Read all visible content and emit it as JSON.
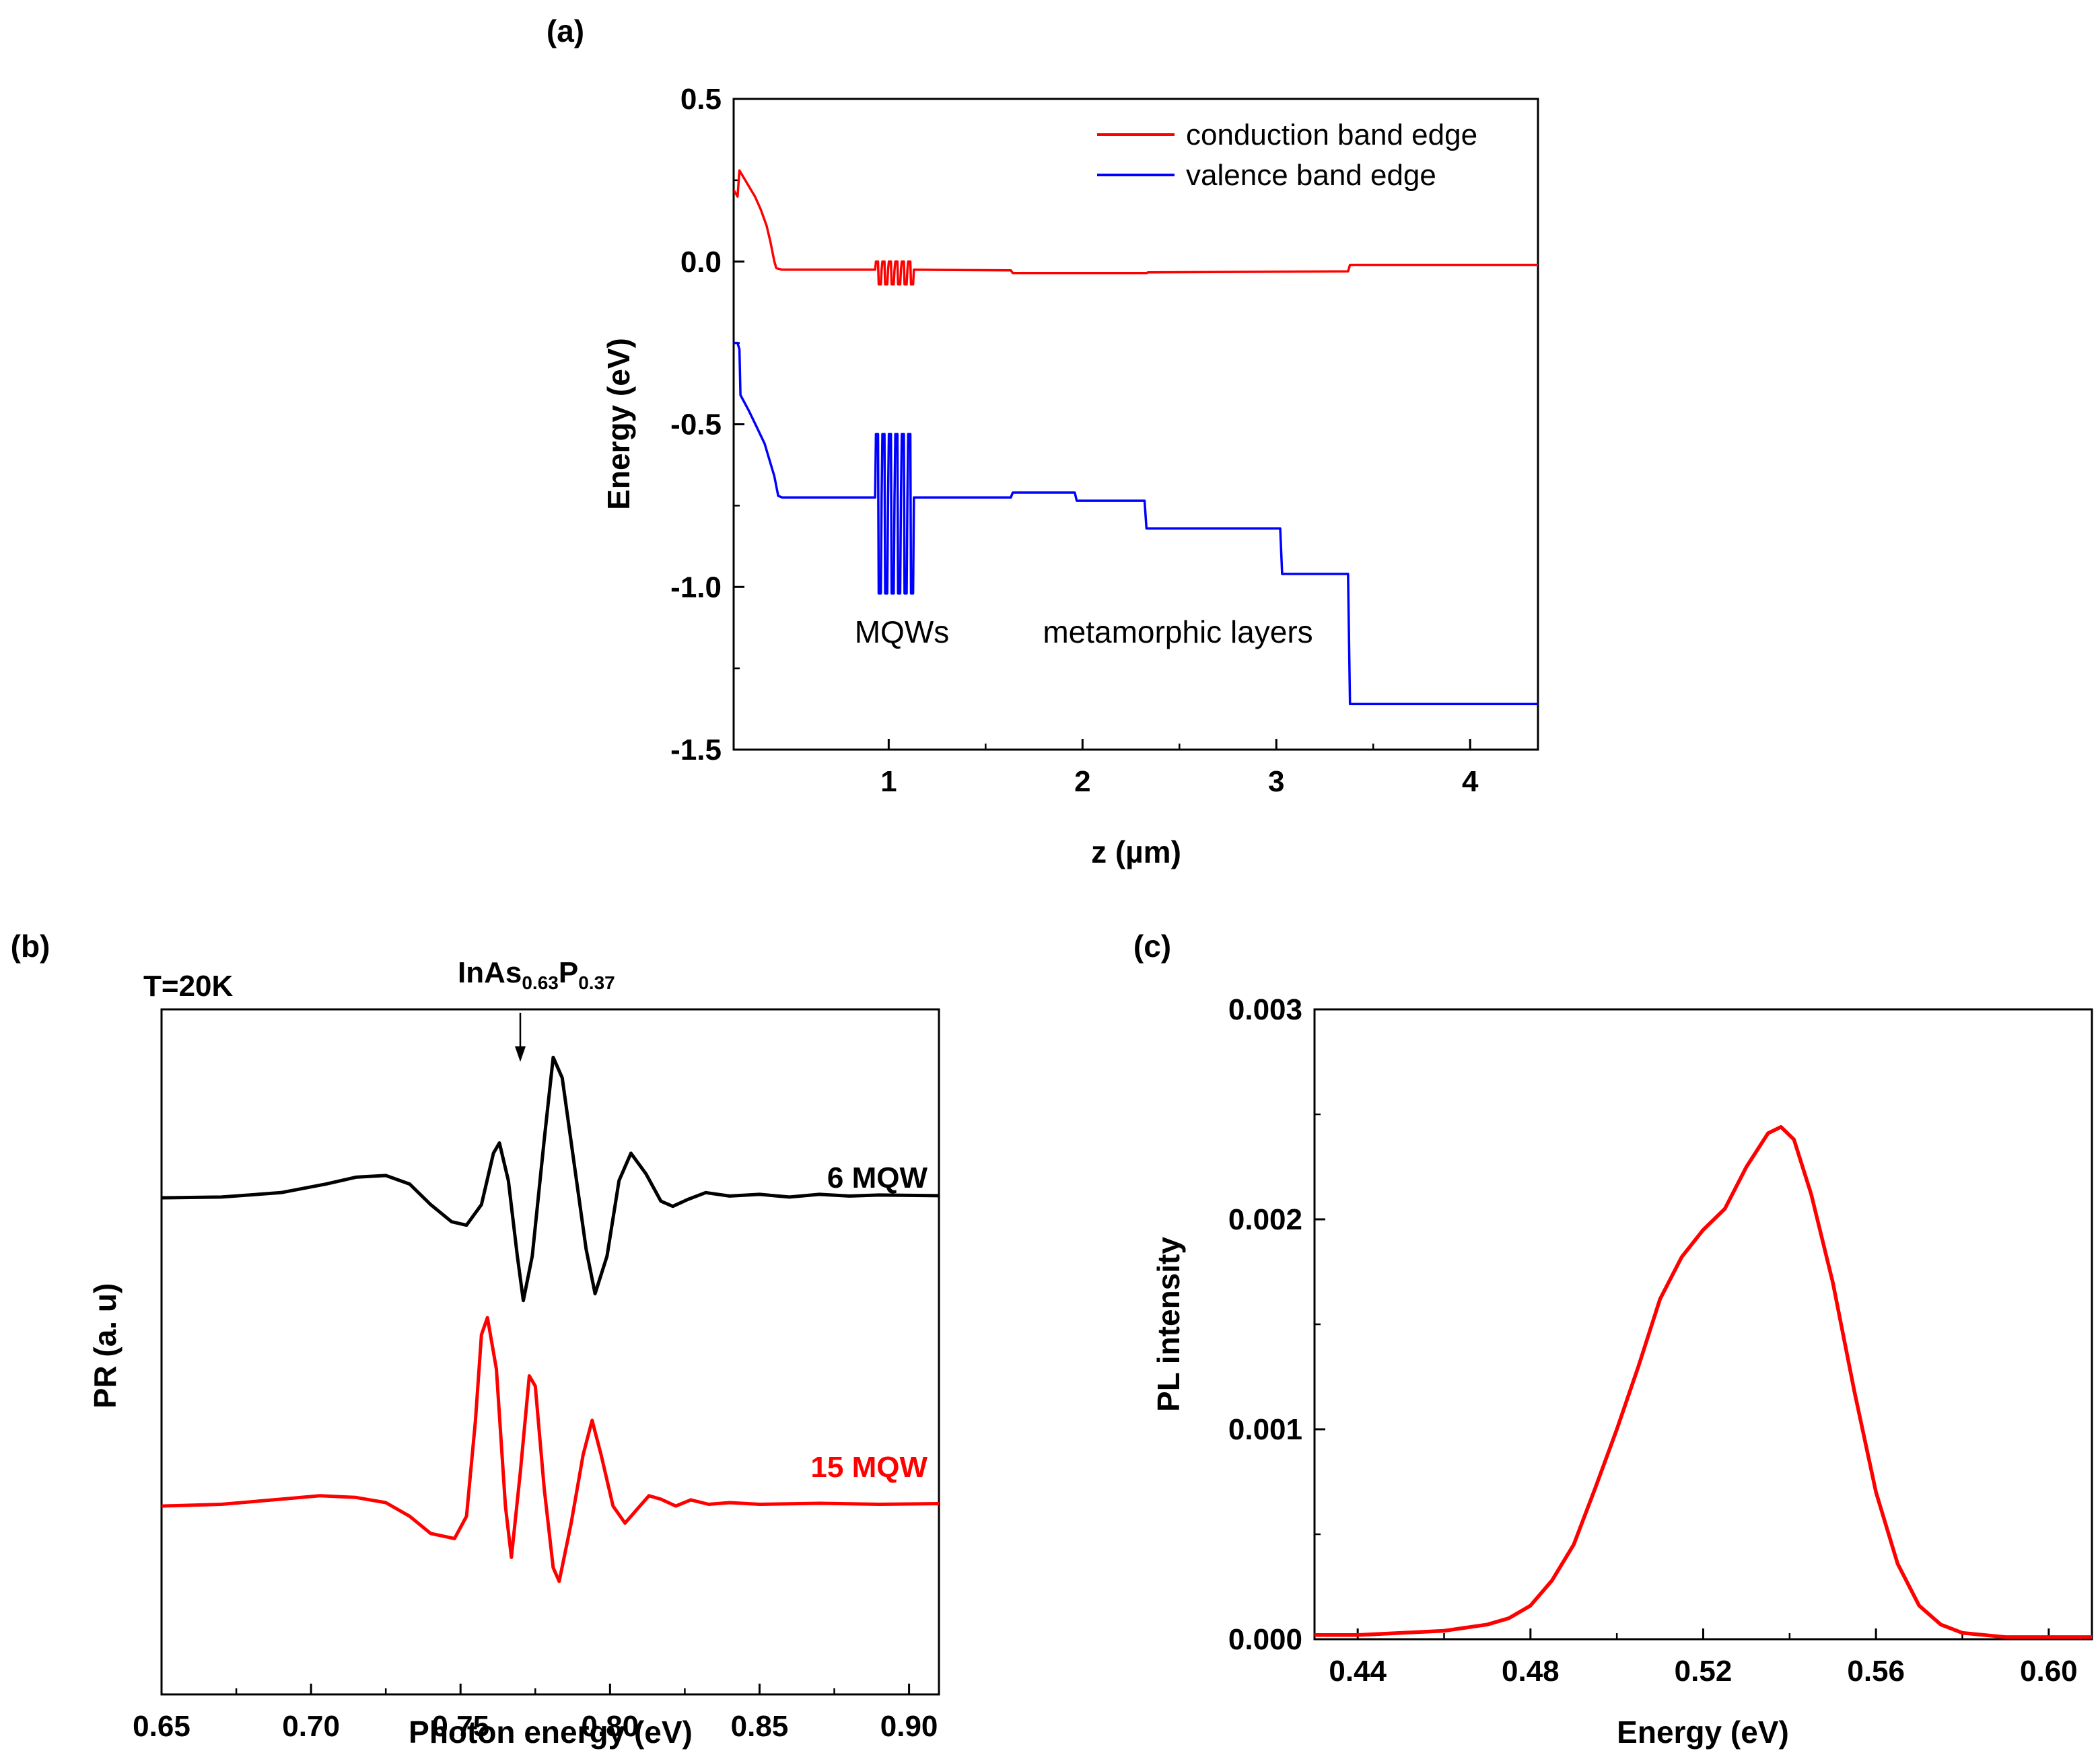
{
  "chart_data": [
    {
      "id": "a",
      "panel_label": "(a)",
      "type": "line",
      "xlabel": "z (µm)",
      "ylabel": "Energy (eV)",
      "xlim": [
        0.2,
        4.35
      ],
      "ylim": [
        -1.5,
        0.5
      ],
      "xticks": [
        1,
        2,
        3,
        4
      ],
      "xtick_labels": [
        "1",
        "2",
        "3",
        "4"
      ],
      "yticks": [
        0.5,
        0.0,
        -0.5,
        -1.0,
        -1.5
      ],
      "ytick_labels": [
        "0.5",
        "0.0",
        "-0.5",
        "-1.0",
        "-1.5"
      ],
      "legend": {
        "position": "top-right",
        "entries": [
          {
            "label": "conduction band edge",
            "color": "#ff0000"
          },
          {
            "label": "valence band edge",
            "color": "#0000ff"
          }
        ]
      },
      "annotations": [
        {
          "text": "MQWs",
          "x": 1.08,
          "y": -1.14
        },
        {
          "text": "metamorphic layers",
          "x": 2.5,
          "y": -1.14
        }
      ],
      "series": [
        {
          "name": "conduction band edge",
          "color": "#ff0000",
          "points": [
            [
              0.2,
              0.22
            ],
            [
              0.22,
              0.2
            ],
            [
              0.23,
              0.28
            ],
            [
              0.25,
              0.26
            ],
            [
              0.28,
              0.23
            ],
            [
              0.31,
              0.2
            ],
            [
              0.34,
              0.16
            ],
            [
              0.37,
              0.11
            ],
            [
              0.39,
              0.06
            ],
            [
              0.41,
              0.0
            ],
            [
              0.42,
              -0.02
            ],
            [
              0.45,
              -0.025
            ],
            [
              0.93,
              -0.025
            ],
            [
              1.63,
              -0.027
            ],
            [
              1.64,
              -0.035
            ],
            [
              2.33,
              -0.035
            ],
            [
              2.34,
              -0.033
            ],
            [
              3.37,
              -0.03
            ],
            [
              3.38,
              -0.01
            ],
            [
              4.35,
              -0.01
            ]
          ],
          "qw_region": {
            "x_start": 0.93,
            "x_end": 1.13,
            "count": 6,
            "top": 0.0,
            "bottom": -0.07
          }
        },
        {
          "name": "valence band edge",
          "color": "#0000ff",
          "points": [
            [
              0.2,
              -0.25
            ],
            [
              0.22,
              -0.25
            ],
            [
              0.23,
              -0.27
            ],
            [
              0.235,
              -0.41
            ],
            [
              0.28,
              -0.46
            ],
            [
              0.32,
              -0.51
            ],
            [
              0.36,
              -0.56
            ],
            [
              0.38,
              -0.6
            ],
            [
              0.41,
              -0.66
            ],
            [
              0.43,
              -0.72
            ],
            [
              0.45,
              -0.725
            ],
            [
              1.63,
              -0.725
            ],
            [
              1.64,
              -0.71
            ],
            [
              1.96,
              -0.71
            ],
            [
              1.97,
              -0.735
            ],
            [
              2.32,
              -0.735
            ],
            [
              2.33,
              -0.82
            ],
            [
              3.02,
              -0.82
            ],
            [
              3.03,
              -0.96
            ],
            [
              3.37,
              -0.96
            ],
            [
              3.38,
              -1.36
            ],
            [
              4.35,
              -1.36
            ]
          ],
          "qw_region": {
            "x_start": 0.93,
            "x_end": 1.13,
            "count": 6,
            "top": -0.53,
            "bottom": -1.02
          }
        }
      ]
    },
    {
      "id": "b",
      "panel_label": "(b)",
      "type": "line",
      "xlabel": "Photon energy (eV)",
      "ylabel": "PR (a. u)",
      "xlim": [
        0.65,
        0.91
      ],
      "ylim": [
        -1.0,
        1.0
      ],
      "xticks": [
        0.65,
        0.7,
        0.75,
        0.8,
        0.85,
        0.9
      ],
      "xtick_labels": [
        "0.65",
        "0.70",
        "0.75",
        "0.80",
        "0.85",
        "0.90"
      ],
      "temperature_label": "T=20K",
      "arrow_annotation": {
        "base": "InAs",
        "sub1": "0.63",
        "mid": "P",
        "sub2": "0.37",
        "x": 0.771
      },
      "series": [
        {
          "name": "6 MQW",
          "color": "#000000",
          "points": [
            [
              0.65,
              0.45
            ],
            [
              0.67,
              0.452
            ],
            [
              0.69,
              0.465
            ],
            [
              0.705,
              0.49
            ],
            [
              0.715,
              0.51
            ],
            [
              0.725,
              0.515
            ],
            [
              0.733,
              0.49
            ],
            [
              0.74,
              0.43
            ],
            [
              0.747,
              0.38
            ],
            [
              0.752,
              0.37
            ],
            [
              0.757,
              0.43
            ],
            [
              0.761,
              0.58
            ],
            [
              0.763,
              0.61
            ],
            [
              0.766,
              0.5
            ],
            [
              0.769,
              0.28
            ],
            [
              0.771,
              0.15
            ],
            [
              0.774,
              0.28
            ],
            [
              0.778,
              0.62
            ],
            [
              0.781,
              0.86
            ],
            [
              0.784,
              0.8
            ],
            [
              0.788,
              0.55
            ],
            [
              0.792,
              0.3
            ],
            [
              0.795,
              0.17
            ],
            [
              0.799,
              0.28
            ],
            [
              0.803,
              0.5
            ],
            [
              0.807,
              0.58
            ],
            [
              0.812,
              0.52
            ],
            [
              0.817,
              0.44
            ],
            [
              0.821,
              0.425
            ],
            [
              0.826,
              0.445
            ],
            [
              0.832,
              0.465
            ],
            [
              0.84,
              0.455
            ],
            [
              0.85,
              0.46
            ],
            [
              0.86,
              0.452
            ],
            [
              0.87,
              0.46
            ],
            [
              0.88,
              0.455
            ],
            [
              0.89,
              0.458
            ],
            [
              0.91,
              0.456
            ]
          ]
        },
        {
          "name": "15 MQW",
          "color": "#ff0000",
          "points": [
            [
              0.65,
              -0.45
            ],
            [
              0.67,
              -0.445
            ],
            [
              0.69,
              -0.43
            ],
            [
              0.703,
              -0.42
            ],
            [
              0.715,
              -0.425
            ],
            [
              0.725,
              -0.44
            ],
            [
              0.733,
              -0.48
            ],
            [
              0.74,
              -0.53
            ],
            [
              0.748,
              -0.545
            ],
            [
              0.752,
              -0.48
            ],
            [
              0.755,
              -0.2
            ],
            [
              0.757,
              0.05
            ],
            [
              0.759,
              0.1
            ],
            [
              0.762,
              -0.05
            ],
            [
              0.765,
              -0.45
            ],
            [
              0.767,
              -0.6
            ],
            [
              0.77,
              -0.35
            ],
            [
              0.773,
              -0.07
            ],
            [
              0.775,
              -0.1
            ],
            [
              0.778,
              -0.4
            ],
            [
              0.781,
              -0.63
            ],
            [
              0.783,
              -0.67
            ],
            [
              0.787,
              -0.5
            ],
            [
              0.791,
              -0.3
            ],
            [
              0.794,
              -0.2
            ],
            [
              0.797,
              -0.3
            ],
            [
              0.801,
              -0.45
            ],
            [
              0.805,
              -0.5
            ],
            [
              0.809,
              -0.46
            ],
            [
              0.813,
              -0.42
            ],
            [
              0.817,
              -0.43
            ],
            [
              0.822,
              -0.45
            ],
            [
              0.827,
              -0.432
            ],
            [
              0.833,
              -0.445
            ],
            [
              0.84,
              -0.44
            ],
            [
              0.85,
              -0.445
            ],
            [
              0.87,
              -0.442
            ],
            [
              0.89,
              -0.445
            ],
            [
              0.91,
              -0.443
            ]
          ]
        }
      ],
      "series_labels": [
        "6 MQW",
        "15 MQW"
      ]
    },
    {
      "id": "c",
      "panel_label": "(c)",
      "type": "line",
      "xlabel": "Energy (eV)",
      "ylabel": "PL intensity",
      "xlim": [
        0.43,
        0.61
      ],
      "ylim": [
        0.0,
        0.003
      ],
      "xticks": [
        0.44,
        0.48,
        0.52,
        0.56,
        0.6
      ],
      "xtick_labels": [
        "0.44",
        "0.48",
        "0.52",
        "0.56",
        "0.60"
      ],
      "yticks": [
        0.0,
        0.001,
        0.002,
        0.003
      ],
      "ytick_labels": [
        "0.000",
        "0.001",
        "0.002",
        "0.003"
      ],
      "series": [
        {
          "name": "PL",
          "color": "#ff0000",
          "points": [
            [
              0.43,
              2e-05
            ],
            [
              0.44,
              2e-05
            ],
            [
              0.45,
              3e-05
            ],
            [
              0.46,
              4e-05
            ],
            [
              0.47,
              7e-05
            ],
            [
              0.475,
              0.0001
            ],
            [
              0.48,
              0.00016
            ],
            [
              0.485,
              0.00028
            ],
            [
              0.49,
              0.00045
            ],
            [
              0.495,
              0.00072
            ],
            [
              0.5,
              0.001
            ],
            [
              0.505,
              0.0013
            ],
            [
              0.51,
              0.00162
            ],
            [
              0.515,
              0.00182
            ],
            [
              0.52,
              0.00195
            ],
            [
              0.525,
              0.00205
            ],
            [
              0.53,
              0.00225
            ],
            [
              0.535,
              0.00241
            ],
            [
              0.538,
              0.00244
            ],
            [
              0.541,
              0.00238
            ],
            [
              0.545,
              0.00212
            ],
            [
              0.55,
              0.0017
            ],
            [
              0.555,
              0.00118
            ],
            [
              0.56,
              0.0007
            ],
            [
              0.565,
              0.00036
            ],
            [
              0.57,
              0.00016
            ],
            [
              0.575,
              7e-05
            ],
            [
              0.58,
              3e-05
            ],
            [
              0.59,
              1e-05
            ],
            [
              0.6,
              1e-05
            ],
            [
              0.61,
              1e-05
            ]
          ]
        }
      ]
    }
  ]
}
